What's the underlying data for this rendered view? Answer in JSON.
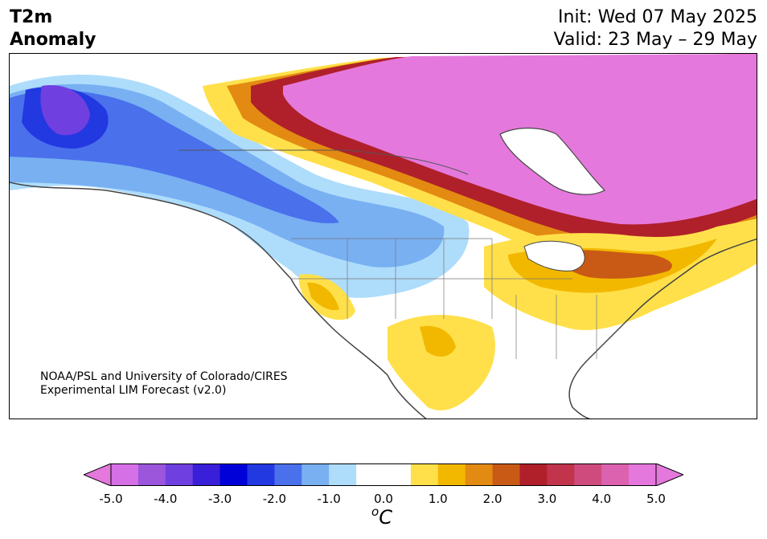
{
  "header": {
    "title_line1": "T2m",
    "title_line2": "Anomaly",
    "init": "Init: Wed 07 May 2025",
    "valid": "Valid: 23 May – 29 May"
  },
  "credit": {
    "line1": "NOAA/PSL and University of Colorado/CIRES",
    "line2": "Experimental LIM Forecast (v2.0)"
  },
  "colorbar": {
    "unit_sup": "o",
    "unit": "C",
    "ticks": [
      "-5.0",
      "-4.0",
      "-3.0",
      "-2.0",
      "-1.0",
      "0.0",
      "1.0",
      "2.0",
      "3.0",
      "4.0",
      "5.0"
    ],
    "colors": [
      "#d670e6",
      "#9b56dc",
      "#6f3fe0",
      "#3a1fd8",
      "#0000d9",
      "#2238e0",
      "#4a70ec",
      "#78b0f2",
      "#aedcfb",
      "#ffffff",
      "#ffffff",
      "#ffe04a",
      "#f2b800",
      "#e38a12",
      "#c85a16",
      "#b0202a",
      "#c2344c",
      "#cf4b7e",
      "#dc62b0",
      "#e478dc"
    ],
    "under_color": "#e478dc",
    "over_color": "#e478dc"
  }
}
